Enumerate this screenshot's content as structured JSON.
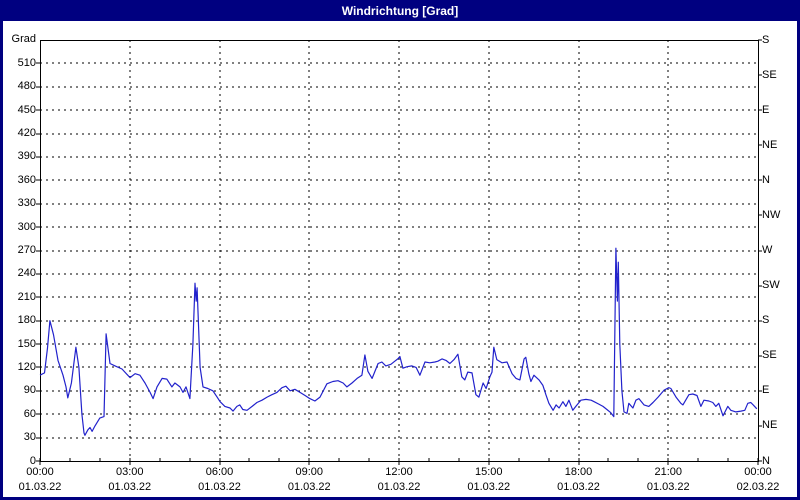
{
  "window": {
    "title": "Windrichtung [Grad]"
  },
  "colors": {
    "frame": "#000080",
    "titlebar_bg": "#000080",
    "titlebar_text": "#ffffff",
    "background": "#ffffff",
    "grid": "#000000",
    "axis": "#000000",
    "text": "#000000",
    "line": "#2222cc"
  },
  "chart_data": {
    "type": "line",
    "title": "Windrichtung [Grad]",
    "ylabel": "Grad",
    "xlabel": "",
    "grid": true,
    "legend": "none",
    "y_axis": {
      "min": 0,
      "max": 540,
      "tick_step": 30,
      "tick_labels": [
        "0",
        "30",
        "60",
        "90",
        "120",
        "150",
        "180",
        "210",
        "240",
        "270",
        "300",
        "330",
        "360",
        "390",
        "420",
        "450",
        "480",
        "510"
      ]
    },
    "y_axis_right": {
      "tick_step": 45,
      "labels_bottom_to_top": [
        "N",
        "NE",
        "E",
        "SE",
        "S",
        "SW",
        "W",
        "NW",
        "N",
        "NE",
        "E",
        "SE",
        "S"
      ]
    },
    "x_axis": {
      "min_hours": 0,
      "max_hours": 24,
      "major_tick_hours": 3,
      "minor_tick_hours": 1,
      "ticks": [
        {
          "time": "00:00",
          "date": "01.03.22"
        },
        {
          "time": "03:00",
          "date": "01.03.22"
        },
        {
          "time": "06:00",
          "date": "01.03.22"
        },
        {
          "time": "09:00",
          "date": "01.03.22"
        },
        {
          "time": "12:00",
          "date": "01.03.22"
        },
        {
          "time": "15:00",
          "date": "01.03.22"
        },
        {
          "time": "18:00",
          "date": "01.03.22"
        },
        {
          "time": "21:00",
          "date": "01.03.22"
        },
        {
          "time": "00:00",
          "date": "02.03.22"
        }
      ]
    },
    "series": [
      {
        "name": "Windrichtung",
        "unit": "Grad",
        "points": [
          [
            0.0,
            110
          ],
          [
            0.15,
            113
          ],
          [
            0.25,
            145
          ],
          [
            0.33,
            180
          ],
          [
            0.45,
            162
          ],
          [
            0.6,
            129
          ],
          [
            0.77,
            110
          ],
          [
            0.87,
            95
          ],
          [
            0.93,
            81
          ],
          [
            1.05,
            100
          ],
          [
            1.2,
            146
          ],
          [
            1.3,
            120
          ],
          [
            1.4,
            60
          ],
          [
            1.47,
            36
          ],
          [
            1.5,
            33
          ],
          [
            1.6,
            40
          ],
          [
            1.67,
            43
          ],
          [
            1.74,
            38
          ],
          [
            1.84,
            45
          ],
          [
            2.0,
            55
          ],
          [
            2.14,
            57
          ],
          [
            2.21,
            163
          ],
          [
            2.34,
            125
          ],
          [
            2.51,
            122
          ],
          [
            2.74,
            118
          ],
          [
            3.01,
            107
          ],
          [
            3.18,
            112
          ],
          [
            3.34,
            110
          ],
          [
            3.51,
            100
          ],
          [
            3.68,
            88
          ],
          [
            3.78,
            80
          ],
          [
            3.91,
            95
          ],
          [
            4.08,
            106
          ],
          [
            4.24,
            105
          ],
          [
            4.41,
            95
          ],
          [
            4.51,
            100
          ],
          [
            4.68,
            95
          ],
          [
            4.78,
            88
          ],
          [
            4.88,
            95
          ],
          [
            5.01,
            80
          ],
          [
            5.11,
            150
          ],
          [
            5.18,
            228
          ],
          [
            5.22,
            205
          ],
          [
            5.25,
            222
          ],
          [
            5.35,
            120
          ],
          [
            5.45,
            95
          ],
          [
            5.61,
            93
          ],
          [
            5.78,
            90
          ],
          [
            5.92,
            82
          ],
          [
            6.02,
            76
          ],
          [
            6.18,
            70
          ],
          [
            6.35,
            68
          ],
          [
            6.45,
            64
          ],
          [
            6.58,
            70
          ],
          [
            6.68,
            72
          ],
          [
            6.78,
            66
          ],
          [
            6.92,
            65
          ],
          [
            7.09,
            70
          ],
          [
            7.25,
            75
          ],
          [
            7.42,
            78
          ],
          [
            7.59,
            82
          ],
          [
            7.75,
            85
          ],
          [
            7.92,
            88
          ],
          [
            8.09,
            94
          ],
          [
            8.22,
            96
          ],
          [
            8.36,
            90
          ],
          [
            8.52,
            92
          ],
          [
            8.69,
            88
          ],
          [
            8.86,
            84
          ],
          [
            9.02,
            80
          ],
          [
            9.19,
            77
          ],
          [
            9.36,
            82
          ],
          [
            9.59,
            99
          ],
          [
            9.79,
            102
          ],
          [
            9.96,
            103
          ],
          [
            10.13,
            100
          ],
          [
            10.26,
            95
          ],
          [
            10.43,
            100
          ],
          [
            10.6,
            106
          ],
          [
            10.76,
            110
          ],
          [
            10.86,
            136
          ],
          [
            10.96,
            115
          ],
          [
            11.1,
            106
          ],
          [
            11.3,
            125
          ],
          [
            11.43,
            127
          ],
          [
            11.56,
            122
          ],
          [
            11.73,
            124
          ],
          [
            11.86,
            128
          ],
          [
            11.96,
            131
          ],
          [
            12.03,
            134
          ],
          [
            12.13,
            119
          ],
          [
            12.27,
            121
          ],
          [
            12.43,
            122
          ],
          [
            12.57,
            120
          ],
          [
            12.7,
            110
          ],
          [
            12.87,
            127
          ],
          [
            13.03,
            126
          ],
          [
            13.2,
            127
          ],
          [
            13.3,
            128
          ],
          [
            13.44,
            131
          ],
          [
            13.57,
            129
          ],
          [
            13.7,
            125
          ],
          [
            13.84,
            130
          ],
          [
            13.97,
            137
          ],
          [
            14.1,
            108
          ],
          [
            14.2,
            104
          ],
          [
            14.3,
            114
          ],
          [
            14.44,
            113
          ],
          [
            14.57,
            85
          ],
          [
            14.67,
            82
          ],
          [
            14.81,
            100
          ],
          [
            14.91,
            93
          ],
          [
            15.04,
            108
          ],
          [
            15.11,
            114
          ],
          [
            15.17,
            146
          ],
          [
            15.27,
            130
          ],
          [
            15.44,
            126
          ],
          [
            15.61,
            127
          ],
          [
            15.78,
            112
          ],
          [
            15.91,
            106
          ],
          [
            16.04,
            104
          ],
          [
            16.18,
            131
          ],
          [
            16.24,
            133
          ],
          [
            16.34,
            112
          ],
          [
            16.41,
            102
          ],
          [
            16.51,
            110
          ],
          [
            16.68,
            104
          ],
          [
            16.81,
            97
          ],
          [
            16.91,
            85
          ],
          [
            17.01,
            74
          ],
          [
            17.15,
            65
          ],
          [
            17.25,
            72
          ],
          [
            17.35,
            68
          ],
          [
            17.48,
            76
          ],
          [
            17.58,
            70
          ],
          [
            17.68,
            78
          ],
          [
            17.81,
            65
          ],
          [
            17.91,
            70
          ],
          [
            18.08,
            78
          ],
          [
            18.25,
            79
          ],
          [
            18.42,
            78
          ],
          [
            18.52,
            76
          ],
          [
            18.68,
            73
          ],
          [
            18.82,
            70
          ],
          [
            18.95,
            66
          ],
          [
            19.08,
            62
          ],
          [
            19.18,
            57
          ],
          [
            19.25,
            273
          ],
          [
            19.3,
            205
          ],
          [
            19.33,
            255
          ],
          [
            19.38,
            150
          ],
          [
            19.45,
            90
          ],
          [
            19.52,
            63
          ],
          [
            19.62,
            61
          ],
          [
            19.68,
            74
          ],
          [
            19.82,
            68
          ],
          [
            19.92,
            78
          ],
          [
            20.02,
            80
          ],
          [
            20.19,
            72
          ],
          [
            20.35,
            70
          ],
          [
            20.49,
            75
          ],
          [
            20.66,
            82
          ],
          [
            20.86,
            91
          ],
          [
            21.02,
            94
          ],
          [
            21.09,
            93
          ],
          [
            21.26,
            82
          ],
          [
            21.42,
            74
          ],
          [
            21.49,
            72
          ],
          [
            21.69,
            85
          ],
          [
            21.82,
            86
          ],
          [
            21.96,
            84
          ],
          [
            22.09,
            70
          ],
          [
            22.19,
            78
          ],
          [
            22.36,
            77
          ],
          [
            22.49,
            75
          ],
          [
            22.59,
            70
          ],
          [
            22.69,
            74
          ],
          [
            22.83,
            58
          ],
          [
            22.99,
            70
          ],
          [
            23.09,
            65
          ],
          [
            23.26,
            63
          ],
          [
            23.43,
            64
          ],
          [
            23.56,
            65
          ],
          [
            23.66,
            74
          ],
          [
            23.76,
            75
          ],
          [
            23.86,
            71
          ],
          [
            23.96,
            67
          ]
        ]
      }
    ]
  }
}
